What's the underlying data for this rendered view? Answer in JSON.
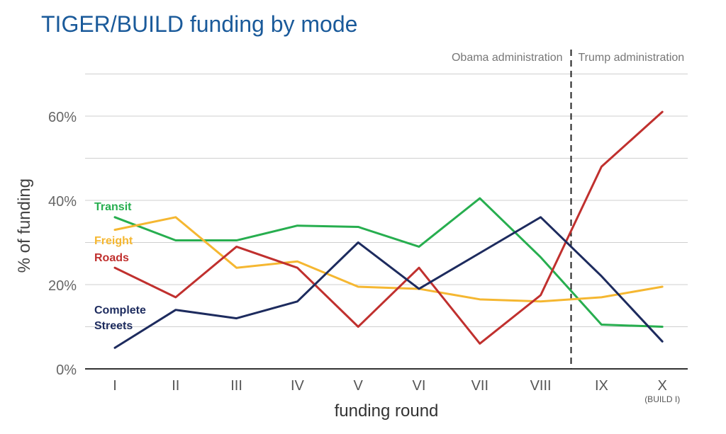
{
  "chart_data": {
    "type": "line",
    "title": "TIGER/BUILD funding by mode",
    "xlabel": "funding round",
    "ylabel": "% of funding",
    "categories": [
      "I",
      "II",
      "III",
      "IV",
      "V",
      "VI",
      "VII",
      "VIII",
      "IX",
      "X"
    ],
    "category_sublabels": {
      "X": "(BUILD I)"
    },
    "ylim": [
      0,
      70
    ],
    "y_ticks": [
      0,
      20,
      40,
      60
    ],
    "y_tick_labels": [
      "0%",
      "20%",
      "40%",
      "60%"
    ],
    "grid": true,
    "legend": "inline labels at left",
    "series": [
      {
        "name": "Transit",
        "color": "#27ae4f",
        "label_lines": [
          "Transit"
        ],
        "values": [
          36,
          30.5,
          30.5,
          34,
          33.7,
          29,
          40.5,
          26.5,
          10.5,
          10
        ]
      },
      {
        "name": "Freight",
        "color": "#f5b731",
        "label_lines": [
          "Freight"
        ],
        "values": [
          33,
          36,
          24,
          25.5,
          19.5,
          19,
          16.5,
          16,
          17,
          19.5
        ]
      },
      {
        "name": "Roads",
        "color": "#c0302e",
        "label_lines": [
          "Roads"
        ],
        "values": [
          24,
          17,
          29,
          24,
          10,
          24,
          6,
          17.5,
          48,
          61
        ]
      },
      {
        "name": "Complete Streets",
        "color": "#1d2b5e",
        "label_lines": [
          "Complete",
          "Streets"
        ],
        "values": [
          5,
          14,
          12,
          16,
          30,
          19,
          27.5,
          36,
          22,
          6.5
        ]
      }
    ],
    "annotations": {
      "divider_after_category": "VIII",
      "left_period": "Obama administration",
      "right_period": "Trump administration"
    }
  }
}
